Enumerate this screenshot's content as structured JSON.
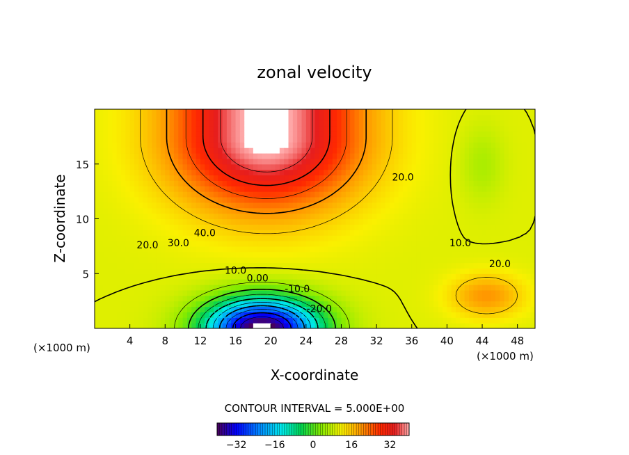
{
  "chart_data": {
    "type": "heatmap",
    "title": "zonal velocity",
    "xlabel": "X-coordinate",
    "ylabel": "Z-coordinate",
    "x_unit_left": "(×1000 m)",
    "x_unit_right": "(×1000 m)",
    "xlim": [
      0,
      50
    ],
    "ylim": [
      0,
      20
    ],
    "x_ticks": [
      4,
      8,
      12,
      16,
      20,
      24,
      28,
      32,
      36,
      40,
      44,
      48
    ],
    "y_ticks": [
      5,
      10,
      15
    ],
    "contour_interval_text": "CONTOUR INTERVAL = 5.000E+00",
    "contour_labels": [
      {
        "text": "40.0",
        "x": 12.5,
        "z": 8.4
      },
      {
        "text": "30.0",
        "x": 9.5,
        "z": 7.5
      },
      {
        "text": "20.0",
        "x": 6.0,
        "z": 7.3
      },
      {
        "text": "20.0",
        "x": 35.0,
        "z": 13.5
      },
      {
        "text": "10.0",
        "x": 16.0,
        "z": 5.0
      },
      {
        "text": "10.0",
        "x": 41.5,
        "z": 7.5
      },
      {
        "text": "20.0",
        "x": 46.0,
        "z": 5.6
      },
      {
        "text": "0.00",
        "x": 18.5,
        "z": 4.3
      },
      {
        "text": "-10.0",
        "x": 23.0,
        "z": 3.3
      },
      {
        "text": "-20.0",
        "x": 25.5,
        "z": 1.5
      }
    ],
    "colorbar": {
      "min": -40,
      "max": 40,
      "ticks": [
        -32,
        -16,
        0,
        16,
        32
      ]
    }
  }
}
